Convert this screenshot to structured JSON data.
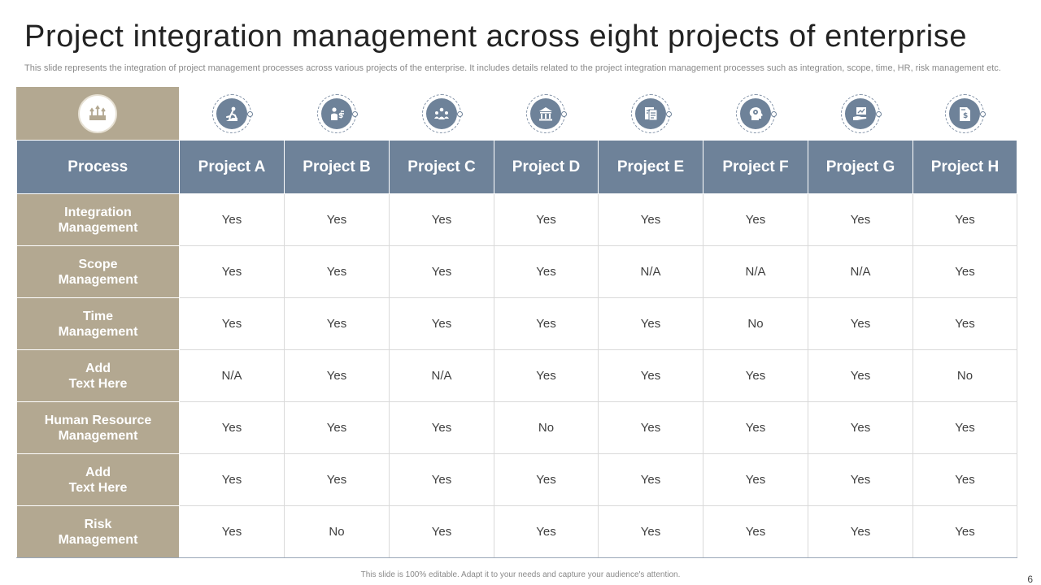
{
  "title": "Project integration management across eight projects of enterprise",
  "subtitle": "This slide represents the integration of project management processes across various projects of the enterprise. It includes details related to the project integration management processes such as integration, scope, time, HR, risk management etc.",
  "corner_icon": "target-growth-icon",
  "table": {
    "process_header": "Process",
    "projects": [
      {
        "label": "Project A",
        "icon": "climbing-person-icon"
      },
      {
        "label": "Project B",
        "icon": "person-money-icon"
      },
      {
        "label": "Project C",
        "icon": "team-network-icon"
      },
      {
        "label": "Project D",
        "icon": "bank-building-icon"
      },
      {
        "label": "Project E",
        "icon": "document-report-icon"
      },
      {
        "label": "Project F",
        "icon": "head-gear-icon"
      },
      {
        "label": "Project G",
        "icon": "hand-chart-icon"
      },
      {
        "label": "Project H",
        "icon": "dollar-document-icon"
      }
    ],
    "rows": [
      {
        "process": "Integration\nManagement",
        "values": [
          "Yes",
          "Yes",
          "Yes",
          "Yes",
          "Yes",
          "Yes",
          "Yes",
          "Yes"
        ]
      },
      {
        "process": "Scope\nManagement",
        "values": [
          "Yes",
          "Yes",
          "Yes",
          "Yes",
          "N/A",
          "N/A",
          "N/A",
          "Yes"
        ]
      },
      {
        "process": "Time\nManagement",
        "values": [
          "Yes",
          "Yes",
          "Yes",
          "Yes",
          "Yes",
          "No",
          "Yes",
          "Yes"
        ]
      },
      {
        "process": "Add\nText Here",
        "values": [
          "N/A",
          "Yes",
          "N/A",
          "Yes",
          "Yes",
          "Yes",
          "Yes",
          "No"
        ]
      },
      {
        "process": "Human Resource\nManagement",
        "values": [
          "Yes",
          "Yes",
          "Yes",
          "No",
          "Yes",
          "Yes",
          "Yes",
          "Yes"
        ]
      },
      {
        "process": "Add\nText Here",
        "values": [
          "Yes",
          "Yes",
          "Yes",
          "Yes",
          "Yes",
          "Yes",
          "Yes",
          "Yes"
        ]
      },
      {
        "process": "Risk\nManagement",
        "values": [
          "Yes",
          "No",
          "Yes",
          "Yes",
          "Yes",
          "Yes",
          "Yes",
          "Yes"
        ]
      }
    ]
  },
  "footer": "This slide is 100% editable. Adapt it to your needs and capture your audience's attention.",
  "page_number": "6",
  "colors": {
    "header_blue": "#6e8299",
    "row_header_tan": "#b3a891",
    "grid_line": "#d9d9d9"
  }
}
